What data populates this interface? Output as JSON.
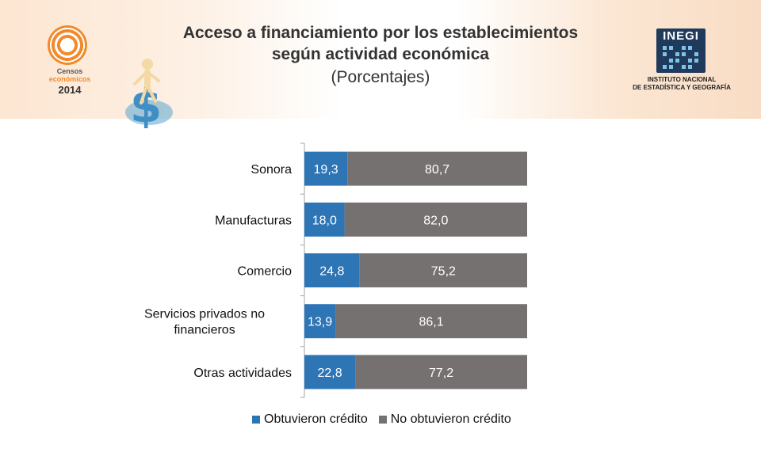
{
  "header": {
    "title_line1": "Acceso a financiamiento por los establecimientos",
    "title_line2": "según actividad económica",
    "title_line3": "(Porcentajes)"
  },
  "censos_logo": {
    "line1": "Censos",
    "line2": "económicos",
    "line3": "2014",
    "icon": "censos-ring-icon"
  },
  "inegi_logo": {
    "word": "INEGI",
    "caption_line1": "INSTITUTO NACIONAL",
    "caption_line2": "DE ESTADÍSTICA Y GEOGRAFÍA"
  },
  "colors": {
    "obtuvieron": "#2e75b6",
    "no_obtuvieron": "#767171",
    "inegi_blue": "#1f3a5a",
    "censos_orange": "#f28a2b"
  },
  "chart_data": {
    "type": "bar",
    "orientation": "horizontal",
    "stacked": true,
    "categories": [
      "Sonora",
      "Manufacturas",
      "Comercio",
      "Servicios privados no financieros",
      "Otras actividades"
    ],
    "category_lines": [
      [
        "Sonora"
      ],
      [
        "Manufacturas"
      ],
      [
        "Comercio"
      ],
      [
        "Servicios privados no",
        "financieros"
      ],
      [
        "Otras actividades"
      ]
    ],
    "series": [
      {
        "name": "Obtuvieron crédito",
        "values": [
          19.3,
          18.0,
          24.8,
          13.9,
          22.8
        ],
        "labels": [
          "19,3",
          "18,0",
          "24,8",
          "13,9",
          "22,8"
        ]
      },
      {
        "name": "No obtuvieron crédito",
        "values": [
          80.7,
          82.0,
          75.2,
          86.1,
          77.2
        ],
        "labels": [
          "80,7",
          "82,0",
          "75,2",
          "86,1",
          "77,2"
        ]
      }
    ],
    "xlim": [
      0,
      100
    ],
    "legend_position": "bottom",
    "grid": false
  }
}
